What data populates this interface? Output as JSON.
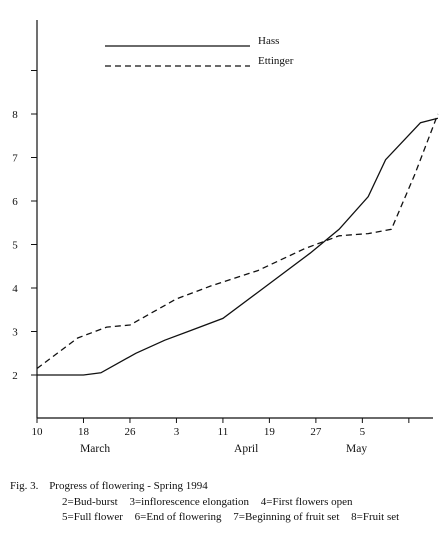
{
  "chart_data": {
    "type": "line",
    "x_ticks": [
      "10",
      "18",
      "26",
      "3",
      "11",
      "19",
      "27",
      "5"
    ],
    "months": [
      "March",
      "April",
      "May"
    ],
    "y_ticks": [
      2,
      3,
      4,
      5,
      6,
      7,
      8
    ],
    "ylim": [
      1.5,
      9.5
    ],
    "xlim": [
      0,
      68
    ],
    "series": [
      {
        "name": "Hass",
        "style": "solid",
        "points": [
          [
            0,
            2
          ],
          [
            8,
            2
          ],
          [
            11,
            2.05
          ],
          [
            17,
            2.5
          ],
          [
            22,
            2.8
          ],
          [
            26,
            3
          ],
          [
            32,
            3.3
          ],
          [
            38,
            3.9
          ],
          [
            47,
            4.8
          ],
          [
            52,
            5.35
          ],
          [
            57,
            6.1
          ],
          [
            60,
            6.95
          ],
          [
            66,
            7.8
          ],
          [
            69,
            7.9
          ]
        ]
      },
      {
        "name": "Ettinger",
        "style": "dashed",
        "points": [
          [
            0,
            2.15
          ],
          [
            7,
            2.85
          ],
          [
            12,
            3.1
          ],
          [
            16,
            3.15
          ],
          [
            24,
            3.75
          ],
          [
            30,
            4.05
          ],
          [
            38,
            4.4
          ],
          [
            46,
            4.9
          ],
          [
            52,
            5.2
          ],
          [
            57,
            5.25
          ],
          [
            61,
            5.35
          ],
          [
            65,
            6.6
          ],
          [
            69,
            8
          ]
        ]
      }
    ]
  },
  "caption": {
    "figure": "Fig. 3.",
    "title": "Progress of flowering - Spring 1994",
    "line1": [
      "2=Bud-burst",
      "3=inflorescence elongation",
      "4=First flowers open"
    ],
    "line2": [
      "5=Full flower",
      "6=End of flowering",
      "7=Beginning of fruit set",
      "8=Fruit set"
    ]
  }
}
